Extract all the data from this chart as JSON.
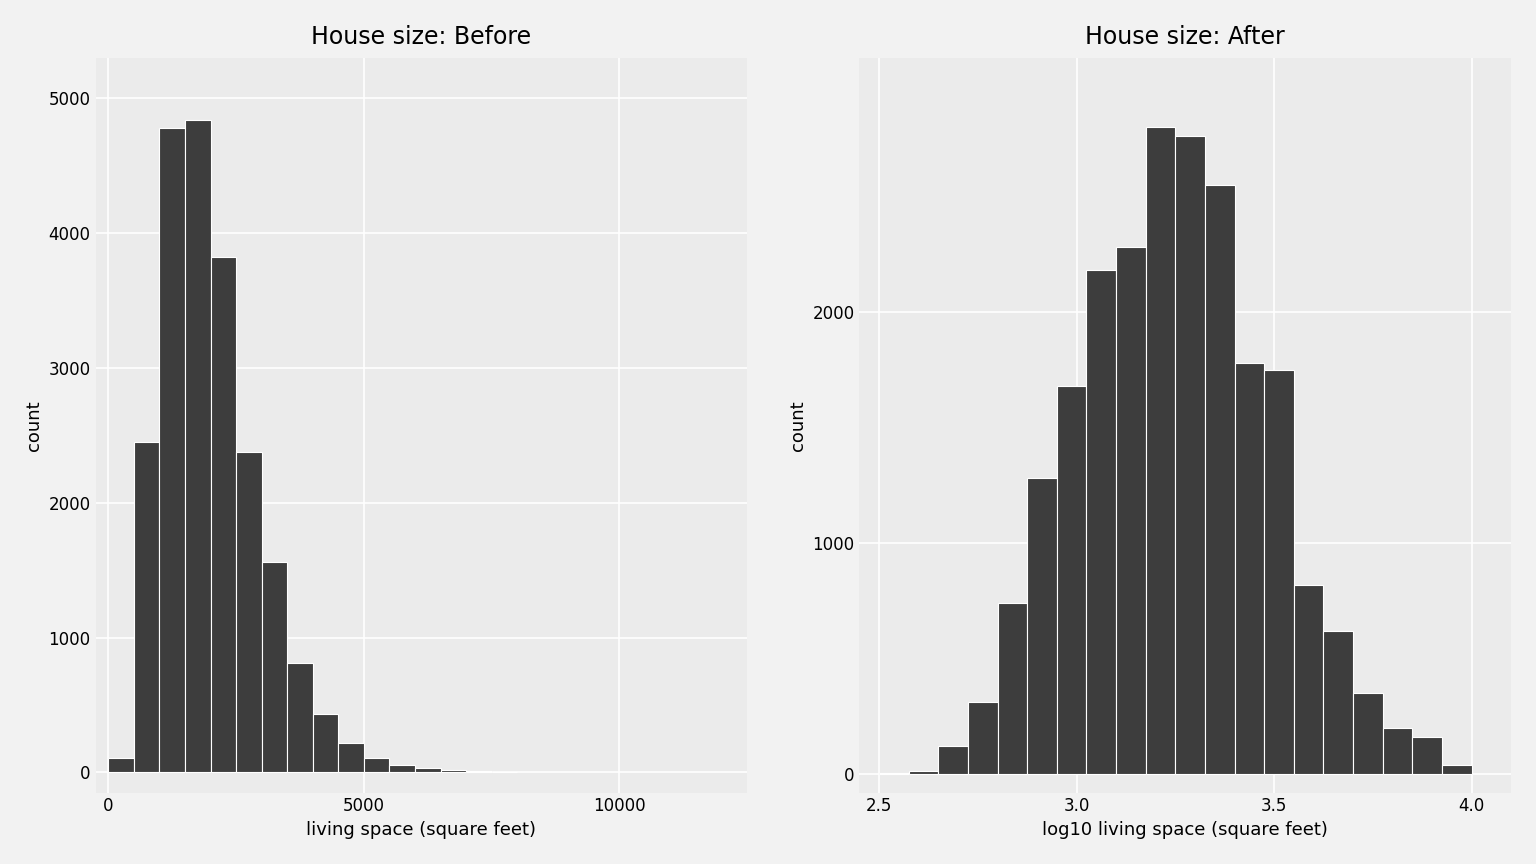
{
  "title_before": "House size: Before",
  "title_after": "House size: After",
  "xlabel_before": "living space (square feet)",
  "xlabel_after": "log10 living space (square feet)",
  "ylabel": "count",
  "bar_color": "#3d3d3d",
  "bar_edge_color": "white",
  "background_color": "#ebebeb",
  "figure_bg": "#f2f2f2",
  "before_bins": [
    0,
    500,
    1000,
    1500,
    2000,
    2500,
    3000,
    3500,
    4000,
    4500,
    5000,
    5500,
    6000,
    6500,
    7000,
    7500,
    8000
  ],
  "before_counts": [
    110,
    2450,
    4780,
    4840,
    3820,
    2380,
    1560,
    810,
    430,
    220,
    110,
    55,
    30,
    18,
    8,
    5
  ],
  "after_bins": [
    2.5,
    2.575,
    2.65,
    2.725,
    2.8,
    2.875,
    2.95,
    3.025,
    3.1,
    3.175,
    3.25,
    3.325,
    3.4,
    3.475,
    3.55,
    3.625,
    3.7,
    3.775,
    3.85,
    3.925,
    4.0
  ],
  "after_counts": [
    5,
    15,
    120,
    310,
    740,
    1280,
    1680,
    2180,
    2280,
    2800,
    2760,
    2550,
    1780,
    1750,
    820,
    620,
    350,
    200,
    160,
    40
  ],
  "before_xlim": [
    -250,
    12500
  ],
  "before_ylim": [
    -150,
    5300
  ],
  "before_xticks": [
    0,
    5000,
    10000
  ],
  "after_xlim": [
    2.45,
    4.1
  ],
  "after_ylim": [
    -80,
    3100
  ],
  "after_xticks": [
    2.5,
    3.0,
    3.5,
    4.0
  ],
  "before_yticks": [
    0,
    1000,
    2000,
    3000,
    4000,
    5000
  ],
  "after_yticks": [
    0,
    1000,
    2000
  ],
  "title_fontsize": 17,
  "label_fontsize": 13,
  "tick_fontsize": 12,
  "bar_linewidth": 0.8,
  "grid_color": "white",
  "grid_linewidth": 1.2
}
